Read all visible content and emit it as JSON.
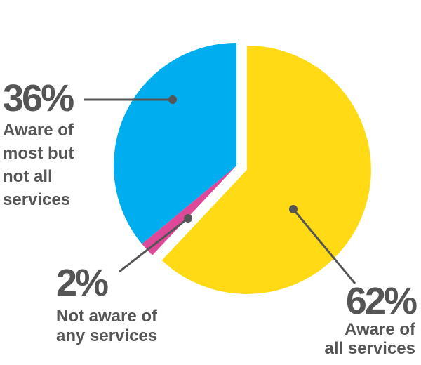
{
  "chart_data": {
    "type": "pie",
    "colors": {
      "leader": "#555555",
      "text": "#555555"
    },
    "slices": [
      {
        "value": 62,
        "percent_label": "62%",
        "label_lines": [
          "Aware of",
          "all services"
        ],
        "color": "#FFDA15",
        "exploded": true
      },
      {
        "value": 2,
        "percent_label": "2%",
        "label_lines": [
          "Not aware of",
          "any services"
        ],
        "color": "#DE4899",
        "exploded": false
      },
      {
        "value": 36,
        "percent_label": "36%",
        "label_lines": [
          "Aware of",
          "most but",
          "not all",
          "services"
        ],
        "color": "#00ADEF",
        "exploded": false
      }
    ]
  }
}
